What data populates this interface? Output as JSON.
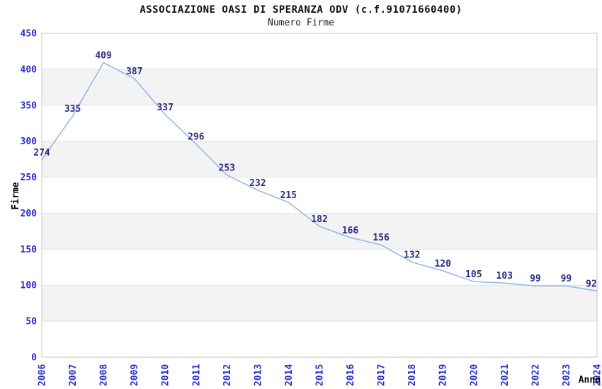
{
  "chart_data": {
    "type": "line",
    "title": "ASSOCIAZIONE OASI DI SPERANZA ODV (c.f.91071660400)",
    "subtitle": "Numero Firme",
    "xlabel": "Anno",
    "ylabel": "Firme",
    "x": [
      "2006",
      "2007",
      "2008",
      "2009",
      "2010",
      "2011",
      "2012",
      "2013",
      "2014",
      "2015",
      "2016",
      "2017",
      "2018",
      "2019",
      "2020",
      "2021",
      "2022",
      "2023",
      "2024"
    ],
    "series": [
      {
        "name": "Numero Firme",
        "values": [
          274,
          335,
          409,
          387,
          337,
          296,
          253,
          232,
          215,
          182,
          166,
          156,
          132,
          120,
          105,
          103,
          99,
          99,
          92
        ]
      }
    ],
    "ylim": [
      0,
      450
    ],
    "ytick_step": 50,
    "yticks": [
      0,
      50,
      100,
      150,
      200,
      250,
      300,
      350,
      400,
      450
    ],
    "grid": "horizontal gridlines every 50 with alternating shaded bands",
    "legend_position": "none",
    "point_labels_visible": true,
    "x_tick_rotation_deg": -90,
    "colors": {
      "line": "#8db6e7",
      "tick_label": "#2a2ecb",
      "point_label": "#2b2b85",
      "band": "#f3f3f3",
      "gridline": "#e2e2e2",
      "plot_border": "#c9c9c9",
      "title": "#111111"
    }
  }
}
